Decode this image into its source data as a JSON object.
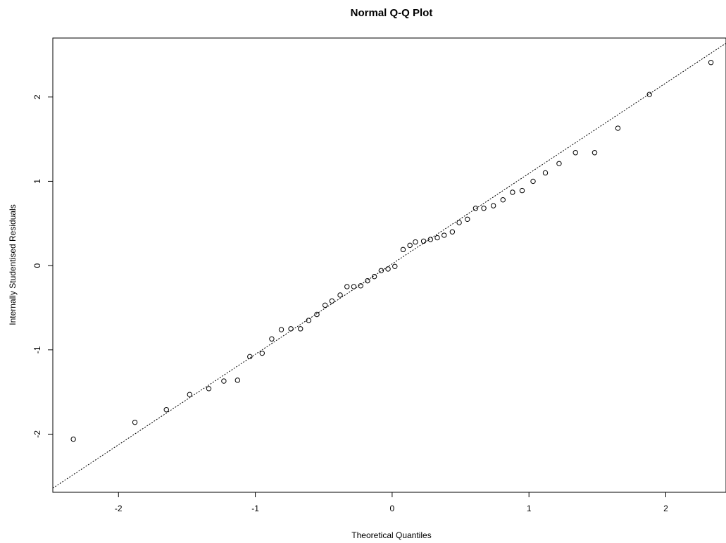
{
  "chart_data": {
    "type": "scatter",
    "title": "Normal Q-Q Plot",
    "xlabel": "Theoretical Quantiles",
    "ylabel": "Internally Studentised Residuals",
    "xlim": [
      -2.48,
      2.44
    ],
    "ylim": [
      -2.69,
      2.7
    ],
    "x_ticks": [
      -2,
      -1,
      0,
      1,
      2
    ],
    "x_tick_labels": [
      "-2",
      "-1",
      "0",
      "1",
      "2"
    ],
    "y_ticks": [
      -2,
      -1,
      0,
      1,
      2
    ],
    "y_tick_labels": [
      "-2",
      "-1",
      "0",
      "1",
      "2"
    ],
    "grid": false,
    "reference_line": {
      "slope": 1.073,
      "intercept": 0.02,
      "style": "dotted"
    },
    "points": [
      [
        -2.33,
        -2.06
      ],
      [
        -1.88,
        -1.86
      ],
      [
        -1.65,
        -1.71
      ],
      [
        -1.48,
        -1.53
      ],
      [
        -1.34,
        -1.46
      ],
      [
        -1.23,
        -1.37
      ],
      [
        -1.13,
        -1.36
      ],
      [
        -1.04,
        -1.08
      ],
      [
        -0.95,
        -1.04
      ],
      [
        -0.88,
        -0.87
      ],
      [
        -0.81,
        -0.76
      ],
      [
        -0.74,
        -0.75
      ],
      [
        -0.67,
        -0.75
      ],
      [
        -0.61,
        -0.65
      ],
      [
        -0.55,
        -0.58
      ],
      [
        -0.49,
        -0.47
      ],
      [
        -0.44,
        -0.42
      ],
      [
        -0.38,
        -0.35
      ],
      [
        -0.33,
        -0.25
      ],
      [
        -0.28,
        -0.25
      ],
      [
        -0.23,
        -0.24
      ],
      [
        -0.18,
        -0.18
      ],
      [
        -0.13,
        -0.13
      ],
      [
        -0.08,
        -0.06
      ],
      [
        -0.03,
        -0.04
      ],
      [
        0.02,
        -0.01
      ],
      [
        0.08,
        0.19
      ],
      [
        0.13,
        0.24
      ],
      [
        0.17,
        0.28
      ],
      [
        0.23,
        0.29
      ],
      [
        0.28,
        0.31
      ],
      [
        0.33,
        0.33
      ],
      [
        0.38,
        0.36
      ],
      [
        0.44,
        0.4
      ],
      [
        0.49,
        0.51
      ],
      [
        0.55,
        0.55
      ],
      [
        0.61,
        0.68
      ],
      [
        0.67,
        0.68
      ],
      [
        0.74,
        0.71
      ],
      [
        0.81,
        0.78
      ],
      [
        0.88,
        0.87
      ],
      [
        0.95,
        0.89
      ],
      [
        1.03,
        1.0
      ],
      [
        1.12,
        1.1
      ],
      [
        1.22,
        1.21
      ],
      [
        1.34,
        1.34
      ],
      [
        1.48,
        1.34
      ],
      [
        1.65,
        1.63
      ],
      [
        1.88,
        2.03
      ],
      [
        2.33,
        2.41
      ]
    ]
  }
}
